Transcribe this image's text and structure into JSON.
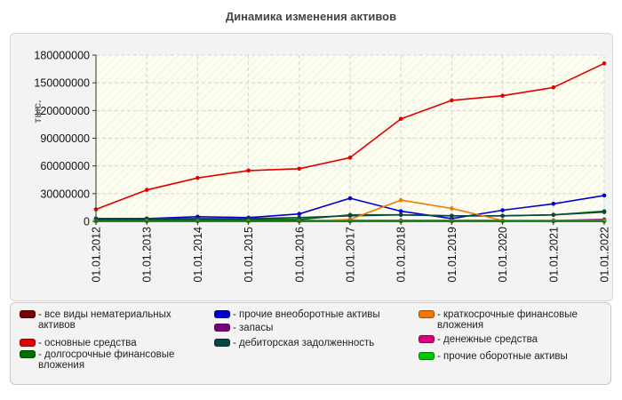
{
  "chart_data": {
    "type": "line",
    "title": "Динамика изменения активов",
    "ylabel": "тыс.",
    "xlabel": "",
    "ylim": [
      0,
      180000000
    ],
    "yticks": [
      0,
      30000000,
      60000000,
      90000000,
      120000000,
      150000000,
      180000000
    ],
    "ytick_labels": [
      "0",
      "30000000",
      "60000000",
      "90000000",
      "120000000",
      "150000000",
      "180000000"
    ],
    "grid": true,
    "legend_position": "bottom",
    "categories": [
      "01.01.2012",
      "01.01.2013",
      "01.01.2014",
      "01.01.2015",
      "01.01.2016",
      "01.01.2017",
      "01.01.2018",
      "01.01.2019",
      "01.01.2020",
      "01.01.2021",
      "01.01.2022"
    ],
    "series": [
      {
        "name": "все виды нематериальных активов",
        "color": "#7b0000",
        "values": [
          0,
          0,
          0,
          0,
          0,
          0,
          0,
          0,
          0,
          0,
          0
        ]
      },
      {
        "name": "основные средства",
        "color": "#e00000",
        "values": [
          13000000,
          34000000,
          47000000,
          55000000,
          57000000,
          69000000,
          111000000,
          131000000,
          136000000,
          145000000,
          171000000
        ]
      },
      {
        "name": "долгосрочные финансовые вложения",
        "color": "#007000",
        "values": [
          2000000,
          2000000,
          2000000,
          2000000,
          2000000,
          7000000,
          7000000,
          6000000,
          6000000,
          7000000,
          11000000
        ]
      },
      {
        "name": "прочие внеоборотные активы",
        "color": "#0000cc",
        "values": [
          3000000,
          3000000,
          5000000,
          4000000,
          8000000,
          25000000,
          11000000,
          3000000,
          12000000,
          19000000,
          28000000
        ]
      },
      {
        "name": "запасы",
        "color": "#7a007a",
        "values": [
          1000000,
          1000000,
          1000000,
          1000000,
          1000000,
          1000000,
          1000000,
          1000000,
          1000000,
          1000000,
          2000000
        ]
      },
      {
        "name": "дебиторская задолженность",
        "color": "#0a4545",
        "values": [
          3000000,
          3000000,
          3000000,
          3000000,
          4000000,
          6000000,
          7000000,
          6000000,
          6000000,
          7000000,
          10000000
        ]
      },
      {
        "name": "краткосрочные финансовые вложения",
        "color": "#f07800",
        "values": [
          0,
          0,
          0,
          0,
          0,
          2000000,
          23000000,
          14000000,
          1000000,
          1000000,
          1000000
        ]
      },
      {
        "name": "денежные средства",
        "color": "#e0007a",
        "values": [
          500000,
          500000,
          500000,
          500000,
          500000,
          500000,
          500000,
          500000,
          500000,
          500000,
          500000
        ]
      },
      {
        "name": "прочие оборотные активы",
        "color": "#00c800",
        "values": [
          200000,
          200000,
          200000,
          200000,
          200000,
          200000,
          200000,
          200000,
          200000,
          200000,
          200000
        ]
      }
    ]
  }
}
